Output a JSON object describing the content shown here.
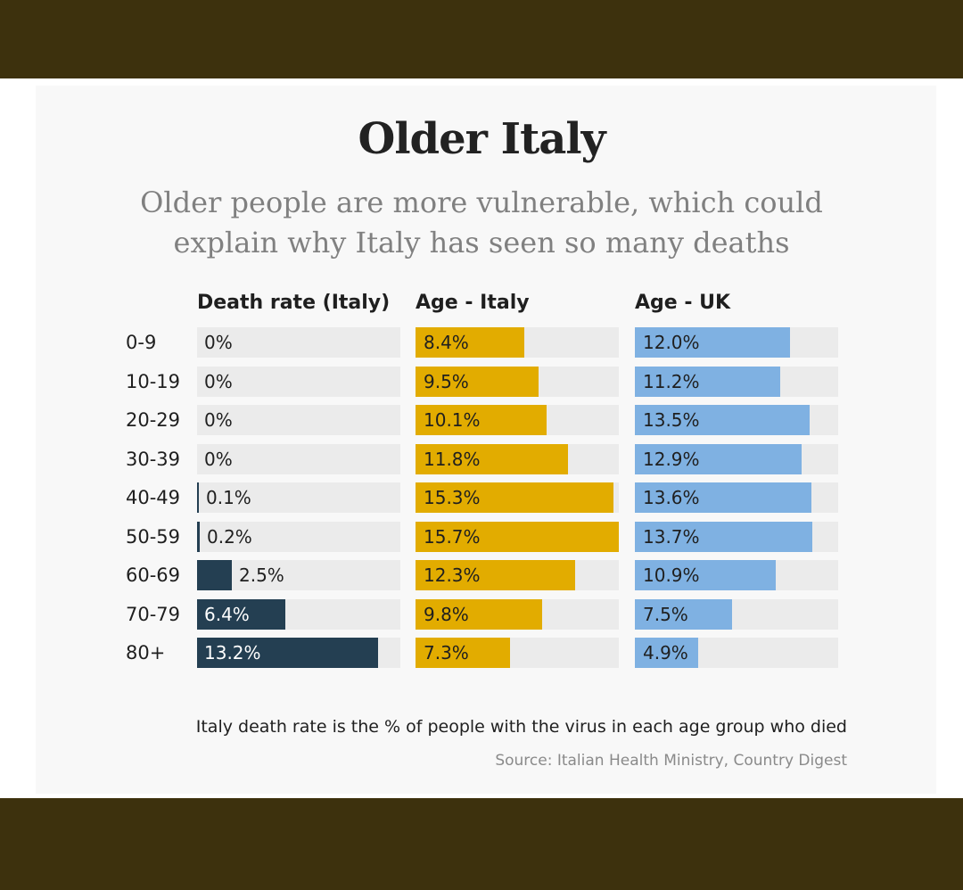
{
  "chart_data": {
    "type": "bar",
    "title": "Older Italy",
    "subtitle": "Older people are more vulnerable, which could explain why Italy has seen so many deaths",
    "categories": [
      "0-9",
      "10-19",
      "20-29",
      "30-39",
      "40-49",
      "50-59",
      "60-69",
      "70-79",
      "80+"
    ],
    "series": [
      {
        "name": "Death rate (Italy)",
        "values": [
          0,
          0,
          0,
          0,
          0.1,
          0.2,
          2.5,
          6.4,
          13.2
        ],
        "labels": [
          "0%",
          "0%",
          "0%",
          "0%",
          "0.1%",
          "0.2%",
          "2.5%",
          "6.4%",
          "13.2%"
        ],
        "max": 14.8,
        "color": "#243f52"
      },
      {
        "name": "Age - Italy",
        "values": [
          8.4,
          9.5,
          10.1,
          11.8,
          15.3,
          15.7,
          12.3,
          9.8,
          7.3
        ],
        "labels": [
          "8.4%",
          "9.5%",
          "10.1%",
          "11.8%",
          "15.3%",
          "15.7%",
          "12.3%",
          "9.8%",
          "7.3%"
        ],
        "max": 15.7,
        "color": "#e2ac00"
      },
      {
        "name": "Age - UK",
        "values": [
          12.0,
          11.2,
          13.5,
          12.9,
          13.6,
          13.7,
          10.9,
          7.5,
          4.9
        ],
        "labels": [
          "12.0%",
          "11.2%",
          "13.5%",
          "12.9%",
          "13.6%",
          "13.7%",
          "10.9%",
          "7.5%",
          "4.9%"
        ],
        "max": 15.7,
        "color": "#7fb1e2"
      }
    ],
    "footnote": "Italy death rate is the % of people with the virus in each age group who died",
    "source": "Source: Italian Health Ministry, Country Digest"
  },
  "colors": {
    "frame": "#3d310d",
    "track": "#ebebeb",
    "text_dark": "#1f1f1f"
  }
}
